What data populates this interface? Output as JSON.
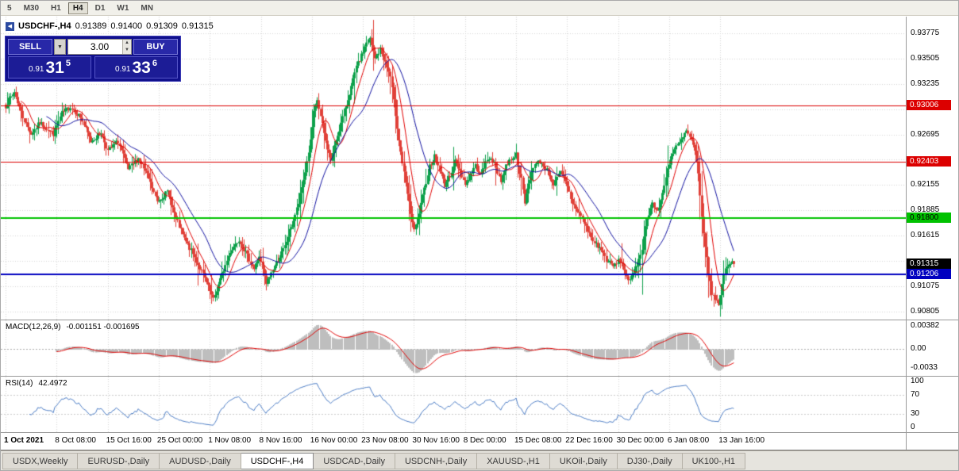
{
  "toolbar": {
    "periods": [
      "5",
      "M30",
      "H1",
      "H4",
      "D1",
      "W1",
      "MN"
    ],
    "active_period": "H4"
  },
  "header": {
    "symbol": "USDCHF-,H4",
    "open": "0.91389",
    "high": "0.91400",
    "low": "0.91309",
    "close": "0.91315"
  },
  "icons": {
    "symbol_icon": "◀",
    "dropdown_icon": "▼",
    "spin_up_icon": "▲",
    "spin_down_icon": "▼"
  },
  "trade_panel": {
    "sell_label": "SELL",
    "buy_label": "BUY",
    "lot": "3.00",
    "sell_price": {
      "small": "0.91",
      "big": "31",
      "sup": "5"
    },
    "buy_price": {
      "small": "0.91",
      "big": "33",
      "sup": "6"
    }
  },
  "indicators": {
    "macd_label": "MACD(12,26,9)",
    "macd_values": "-0.001151 -0.001695",
    "rsi_label": "RSI(14)",
    "rsi_value": "42.4972"
  },
  "tabs": {
    "items": [
      "USDX,Weekly",
      "EURUSD-,Daily",
      "AUDUSD-,Daily",
      "USDCHF-,H4",
      "USDCAD-,Daily",
      "USDCNH-,Daily",
      "XAUUSD-,H1",
      "UKOil-,Daily",
      "DJ30-,Daily",
      "UK100-,H1"
    ],
    "active": "USDCHF-,H4"
  },
  "colors": {
    "up_candle": "#0CA04A",
    "down_candle": "#E04038",
    "ma_fast": "#E00000",
    "ma_slow": "#1010A0",
    "macd_hist": "#BEBEBE",
    "macd_signal": "#E00000",
    "rsi_line": "#4A7BC4",
    "grid": "#D4D4D4",
    "panel_blue": "#10108C"
  },
  "chart_data": {
    "type": "candlestick",
    "title": "USDCHF-,H4",
    "bars_total": 429,
    "bars_per_label": 30,
    "price_axis_ticks": [
      {
        "v": 0.93775,
        "label": "0.93775"
      },
      {
        "v": 0.93505,
        "label": "0.93505"
      },
      {
        "v": 0.93235,
        "label": "0.93235"
      },
      {
        "v": 0.92965,
        "label": ""
      },
      {
        "v": 0.92695,
        "label": "0.92695"
      },
      {
        "v": 0.92425,
        "label": ""
      },
      {
        "v": 0.92155,
        "label": "0.92155"
      },
      {
        "v": 0.91885,
        "label": "0.91885"
      },
      {
        "v": 0.91615,
        "label": "0.91615"
      },
      {
        "v": 0.91345,
        "label": ""
      },
      {
        "v": 0.91075,
        "label": "0.91075"
      },
      {
        "v": 0.90805,
        "label": "0.90805"
      }
    ],
    "hlines": [
      {
        "v": 0.93006,
        "label": "0.93006",
        "color": "#DC0000",
        "text": "#FFFFFF",
        "width": 1
      },
      {
        "v": 0.92403,
        "label": "0.92403",
        "color": "#DC0000",
        "text": "#FFFFFF",
        "width": 1
      },
      {
        "v": 0.918,
        "label": "0.91800",
        "color": "#00C200",
        "text": "#000000",
        "width": 2
      },
      {
        "v": 0.91206,
        "label": "0.91206",
        "color": "#0000C0",
        "text": "#FFFFFF",
        "width": 2
      }
    ],
    "current_price": {
      "v": 0.91315,
      "label": "0.91315",
      "color": "#000000",
      "text": "#FFFFFF"
    },
    "time_labels": [
      "1 Oct 2021",
      "8 Oct 08:00",
      "15 Oct 16:00",
      "25 Oct 00:00",
      "1 Nov 08:00",
      "8 Nov 16:00",
      "16 Nov 00:00",
      "23 Nov 08:00",
      "30 Nov 16:00",
      "8 Dec 00:00",
      "15 Dec 08:00",
      "22 Dec 16:00",
      "30 Dec 00:00",
      "6 Jan 08:00",
      "13 Jan 16:00"
    ],
    "macd_axis": [
      {
        "v": 0.00382,
        "label": "0.00382"
      },
      {
        "v": 0,
        "label": "0.00"
      },
      {
        "v": -0.0033,
        "label": "-0.0033"
      }
    ],
    "rsi_axis": [
      {
        "v": 100,
        "label": "100"
      },
      {
        "v": 70,
        "label": "70"
      },
      {
        "v": 30,
        "label": "30"
      },
      {
        "v": 0,
        "label": "0"
      }
    ],
    "rsi_levels": [
      70,
      30
    ],
    "price_anchors": [
      [
        0,
        0.93
      ],
      [
        5,
        0.9315
      ],
      [
        10,
        0.9288
      ],
      [
        15,
        0.927
      ],
      [
        20,
        0.9282
      ],
      [
        28,
        0.927
      ],
      [
        33,
        0.9292
      ],
      [
        38,
        0.9299
      ],
      [
        44,
        0.9288
      ],
      [
        50,
        0.9262
      ],
      [
        56,
        0.9272
      ],
      [
        60,
        0.9252
      ],
      [
        66,
        0.9262
      ],
      [
        72,
        0.9232
      ],
      [
        78,
        0.9244
      ],
      [
        84,
        0.9222
      ],
      [
        89,
        0.9198
      ],
      [
        95,
        0.9208
      ],
      [
        100,
        0.918
      ],
      [
        105,
        0.9158
      ],
      [
        110,
        0.9142
      ],
      [
        116,
        0.912
      ],
      [
        122,
        0.9093
      ],
      [
        127,
        0.912
      ],
      [
        132,
        0.9145
      ],
      [
        137,
        0.9158
      ],
      [
        142,
        0.914
      ],
      [
        146,
        0.9126
      ],
      [
        149,
        0.914
      ],
      [
        153,
        0.911
      ],
      [
        157,
        0.9126
      ],
      [
        160,
        0.9136
      ],
      [
        164,
        0.915
      ],
      [
        168,
        0.9172
      ],
      [
        172,
        0.9196
      ],
      [
        176,
        0.923
      ],
      [
        179,
        0.9262
      ],
      [
        181,
        0.9292
      ],
      [
        183,
        0.9306
      ],
      [
        185,
        0.9288
      ],
      [
        188,
        0.9262
      ],
      [
        191,
        0.9242
      ],
      [
        194,
        0.9263
      ],
      [
        197,
        0.9281
      ],
      [
        200,
        0.9301
      ],
      [
        203,
        0.932
      ],
      [
        206,
        0.9341
      ],
      [
        209,
        0.9353
      ],
      [
        212,
        0.9368
      ],
      [
        214,
        0.9371
      ],
      [
        217,
        0.935
      ],
      [
        220,
        0.936
      ],
      [
        223,
        0.9346
      ],
      [
        226,
        0.9331
      ],
      [
        229,
        0.9291
      ],
      [
        232,
        0.9251
      ],
      [
        235,
        0.9216
      ],
      [
        238,
        0.9186
      ],
      [
        240,
        0.9166
      ],
      [
        243,
        0.9186
      ],
      [
        246,
        0.9211
      ],
      [
        249,
        0.9236
      ],
      [
        252,
        0.9246
      ],
      [
        255,
        0.9231
      ],
      [
        258,
        0.9216
      ],
      [
        261,
        0.9226
      ],
      [
        264,
        0.9241
      ],
      [
        267,
        0.9231
      ],
      [
        270,
        0.9216
      ],
      [
        273,
        0.9226
      ],
      [
        276,
        0.9236
      ],
      [
        279,
        0.9226
      ],
      [
        282,
        0.9239
      ],
      [
        285,
        0.9246
      ],
      [
        288,
        0.9233
      ],
      [
        291,
        0.9221
      ],
      [
        294,
        0.9236
      ],
      [
        297,
        0.9244
      ],
      [
        300,
        0.9248
      ],
      [
        303,
        0.9221
      ],
      [
        305,
        0.9196
      ],
      [
        307,
        0.9216
      ],
      [
        310,
        0.9236
      ],
      [
        314,
        0.9241
      ],
      [
        318,
        0.9231
      ],
      [
        322,
        0.9216
      ],
      [
        326,
        0.9229
      ],
      [
        329,
        0.9219
      ],
      [
        333,
        0.9196
      ],
      [
        337,
        0.9186
      ],
      [
        341,
        0.9171
      ],
      [
        345,
        0.9156
      ],
      [
        349,
        0.9149
      ],
      [
        353,
        0.9136
      ],
      [
        357,
        0.9129
      ],
      [
        361,
        0.9136
      ],
      [
        364,
        0.9121
      ],
      [
        367,
        0.9113
      ],
      [
        371,
        0.9131
      ],
      [
        374,
        0.9149
      ],
      [
        377,
        0.9181
      ],
      [
        380,
        0.9196
      ],
      [
        383,
        0.9186
      ],
      [
        386,
        0.9206
      ],
      [
        388,
        0.9226
      ],
      [
        391,
        0.9246
      ],
      [
        394,
        0.9256
      ],
      [
        397,
        0.9263
      ],
      [
        400,
        0.9273
      ],
      [
        403,
        0.9263
      ],
      [
        405,
        0.9251
      ],
      [
        407,
        0.9226
      ],
      [
        409,
        0.9181
      ],
      [
        411,
        0.9151
      ],
      [
        413,
        0.9121
      ],
      [
        415,
        0.9101
      ],
      [
        417,
        0.9093
      ],
      [
        419,
        0.9089
      ],
      [
        421,
        0.9111
      ],
      [
        423,
        0.9126
      ],
      [
        425,
        0.9133
      ],
      [
        428,
        0.91315
      ]
    ]
  }
}
